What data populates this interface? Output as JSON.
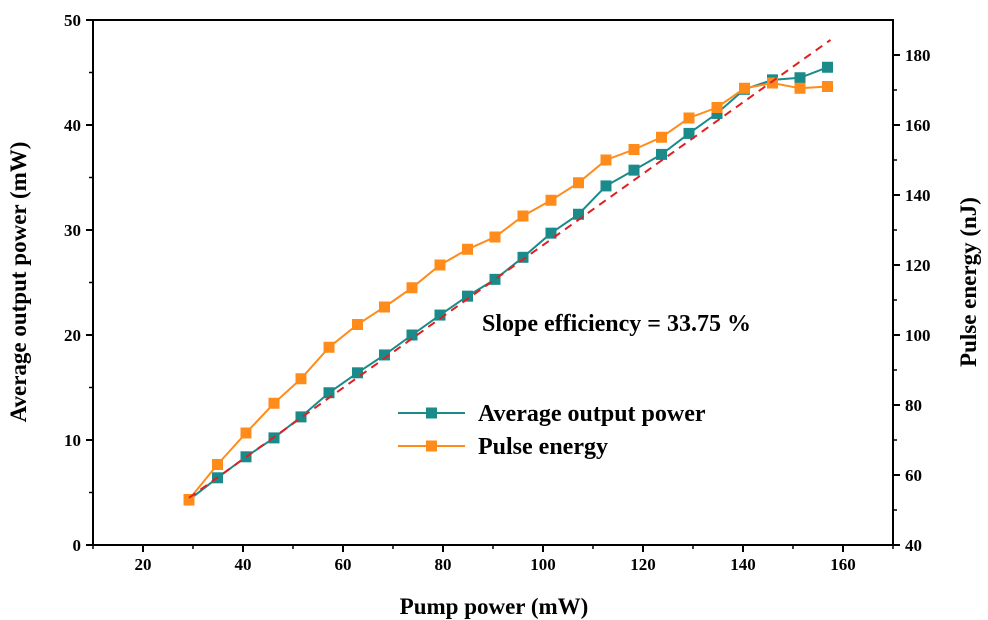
{
  "chart_data": {
    "type": "line",
    "xlabel": "Pump power (mW)",
    "ylabel": "Average output power (mW)",
    "y2label": "Pulse energy (nJ)",
    "xlim": [
      10,
      170
    ],
    "ylim": [
      0,
      50
    ],
    "y2lim": [
      40,
      190
    ],
    "x_ticks": [
      20,
      40,
      60,
      80,
      100,
      120,
      140,
      160
    ],
    "y_ticks": [
      0,
      10,
      20,
      30,
      40,
      50
    ],
    "y2_ticks": [
      40,
      60,
      80,
      100,
      120,
      140,
      160,
      180
    ],
    "grid": false,
    "legend_position": "center-right",
    "annotation": "Slope efficiency = 33.75 %",
    "series": [
      {
        "name": "Average output power",
        "axis": "left",
        "color": "#1a8a8a",
        "marker": "square",
        "x": [
          29.2,
          34.9,
          40.6,
          46.2,
          51.6,
          57.2,
          62.9,
          68.3,
          73.8,
          79.4,
          84.9,
          90.4,
          96.0,
          101.6,
          107.1,
          112.6,
          118.2,
          123.7,
          129.2,
          134.8,
          140.3,
          145.9,
          151.4,
          156.9
        ],
        "y": [
          4.3,
          6.4,
          8.4,
          10.2,
          12.2,
          14.5,
          16.4,
          18.1,
          20.0,
          21.9,
          23.7,
          25.3,
          27.4,
          29.7,
          31.5,
          34.2,
          35.7,
          37.2,
          39.2,
          41.1,
          43.4,
          44.3,
          44.5,
          45.5
        ]
      },
      {
        "name": "Pulse energy",
        "axis": "right",
        "color": "#ff8c1a",
        "marker": "square",
        "x": [
          29.2,
          34.9,
          40.6,
          46.2,
          51.6,
          57.2,
          62.9,
          68.3,
          73.8,
          79.4,
          84.9,
          90.4,
          96.0,
          101.6,
          107.1,
          112.6,
          118.2,
          123.7,
          129.2,
          134.8,
          140.3,
          145.9,
          151.4,
          156.9
        ],
        "y": [
          53,
          63,
          72,
          80.5,
          87.5,
          96.5,
          103,
          108,
          113.5,
          120,
          124.5,
          128,
          134,
          138.5,
          143.5,
          150,
          153,
          156.5,
          162,
          165,
          170.5,
          172,
          170.5,
          171
        ]
      },
      {
        "axis": "left",
        "color": "#e02020",
        "style": "dashed",
        "x": [
          29.2,
          157.5
        ],
        "y": [
          4.5,
          48.1
        ]
      }
    ]
  }
}
